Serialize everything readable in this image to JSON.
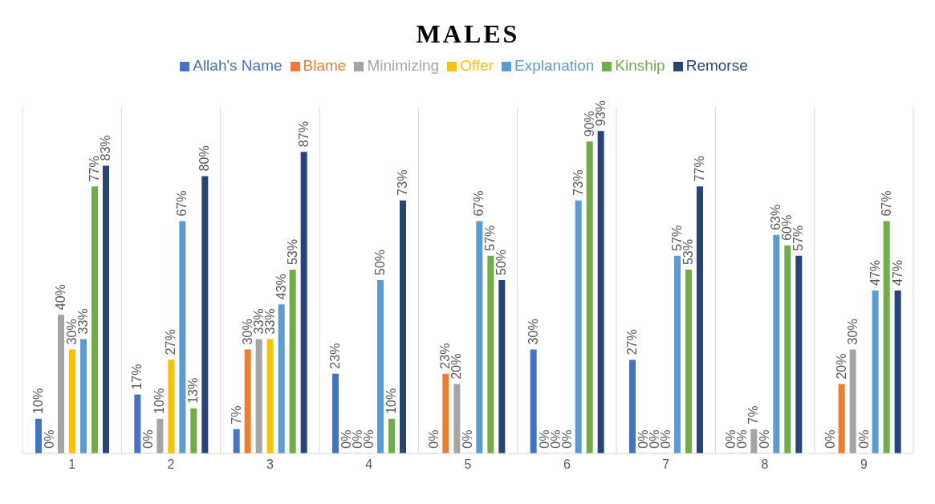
{
  "chart_data": {
    "type": "bar",
    "title": "MALES",
    "categories": [
      "1",
      "2",
      "3",
      "4",
      "5",
      "6",
      "7",
      "8",
      "9"
    ],
    "series": [
      {
        "name": "Allah's Name",
        "color": "#4472c4",
        "values": [
          10,
          17,
          7,
          23,
          0,
          30,
          27,
          0,
          0
        ],
        "value_labels": [
          "10%",
          "17%",
          "7%",
          "23%",
          "0%",
          "30%",
          "27%",
          "0%",
          "0%"
        ]
      },
      {
        "name": "Blame",
        "color": "#ed7d31",
        "values": [
          0,
          0,
          30,
          0,
          23,
          0,
          0,
          0,
          20
        ],
        "value_labels": [
          "0%",
          "0%",
          "30%",
          "0%",
          "23%",
          "0%",
          "0%",
          "0%",
          "20%"
        ]
      },
      {
        "name": "Minimizing",
        "color": "#a5a5a5",
        "values": [
          40,
          10,
          33,
          0,
          20,
          0,
          0,
          7,
          30
        ],
        "value_labels": [
          "40%",
          "10%",
          "33%",
          "0%",
          "20%",
          "0%",
          "0%",
          "7%",
          "30%"
        ]
      },
      {
        "name": "Offer",
        "color": "#ffc000",
        "values": [
          30,
          27,
          33,
          0,
          0,
          0,
          0,
          0,
          0
        ],
        "value_labels": [
          "30%",
          "27%",
          "33%",
          "0%",
          "0%",
          "0%",
          "0%",
          "0%",
          "0%"
        ]
      },
      {
        "name": "Explanation",
        "color": "#5b9bd5",
        "values": [
          33,
          67,
          43,
          50,
          67,
          73,
          57,
          63,
          47
        ],
        "value_labels": [
          "33%",
          "67%",
          "43%",
          "50%",
          "67%",
          "73%",
          "57%",
          "63%",
          "47%"
        ]
      },
      {
        "name": "Kinship",
        "color": "#70ad47",
        "values": [
          77,
          13,
          53,
          10,
          57,
          90,
          53,
          60,
          67
        ],
        "value_labels": [
          "77%",
          "13%",
          "53%",
          "10%",
          "57%",
          "90%",
          "53%",
          "60%",
          "67%"
        ]
      },
      {
        "name": "Remorse",
        "color": "#264478",
        "values": [
          83,
          80,
          87,
          73,
          50,
          93,
          77,
          57,
          47
        ],
        "value_labels": [
          "83%",
          "80%",
          "87%",
          "73%",
          "50%",
          "93%",
          "77%",
          "57%",
          "47%"
        ]
      }
    ],
    "ylim": [
      0,
      100
    ],
    "tick_labels": "x",
    "grid": "x",
    "legend": "top"
  }
}
